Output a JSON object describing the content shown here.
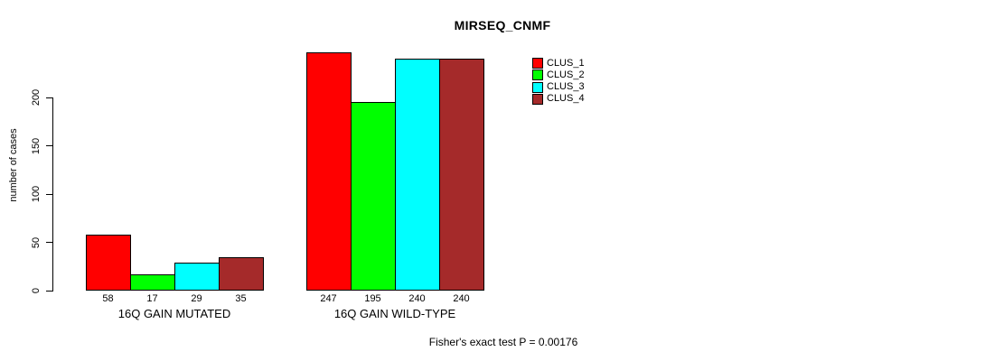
{
  "chart_data": {
    "type": "bar",
    "title": "MIRSEQ_CNMF",
    "ylabel": "number of cases",
    "xlabel": "",
    "footnote": "Fisher's exact test P = 0.00176",
    "categories": [
      "16Q GAIN MUTATED",
      "16Q GAIN WILD-TYPE"
    ],
    "series": [
      {
        "name": "CLUS_1",
        "color": "#FF0000",
        "values": [
          58,
          247
        ]
      },
      {
        "name": "CLUS_2",
        "color": "#00FF00",
        "values": [
          17,
          195
        ]
      },
      {
        "name": "CLUS_3",
        "color": "#00FFFF",
        "values": [
          29,
          240
        ]
      },
      {
        "name": "CLUS_4",
        "color": "#A52A2A",
        "values": [
          35,
          240
        ]
      }
    ],
    "yticks": [
      0,
      50,
      100,
      150,
      200
    ],
    "ylim": [
      0,
      260
    ],
    "grid": false,
    "bar_value_labels": "below baseline",
    "legend": {
      "position": "top-right",
      "entries": [
        "CLUS_1",
        "CLUS_2",
        "CLUS_3",
        "CLUS_4"
      ]
    },
    "axis_color": "#000000",
    "text_color": "#000000",
    "background": "#FFFFFF"
  }
}
